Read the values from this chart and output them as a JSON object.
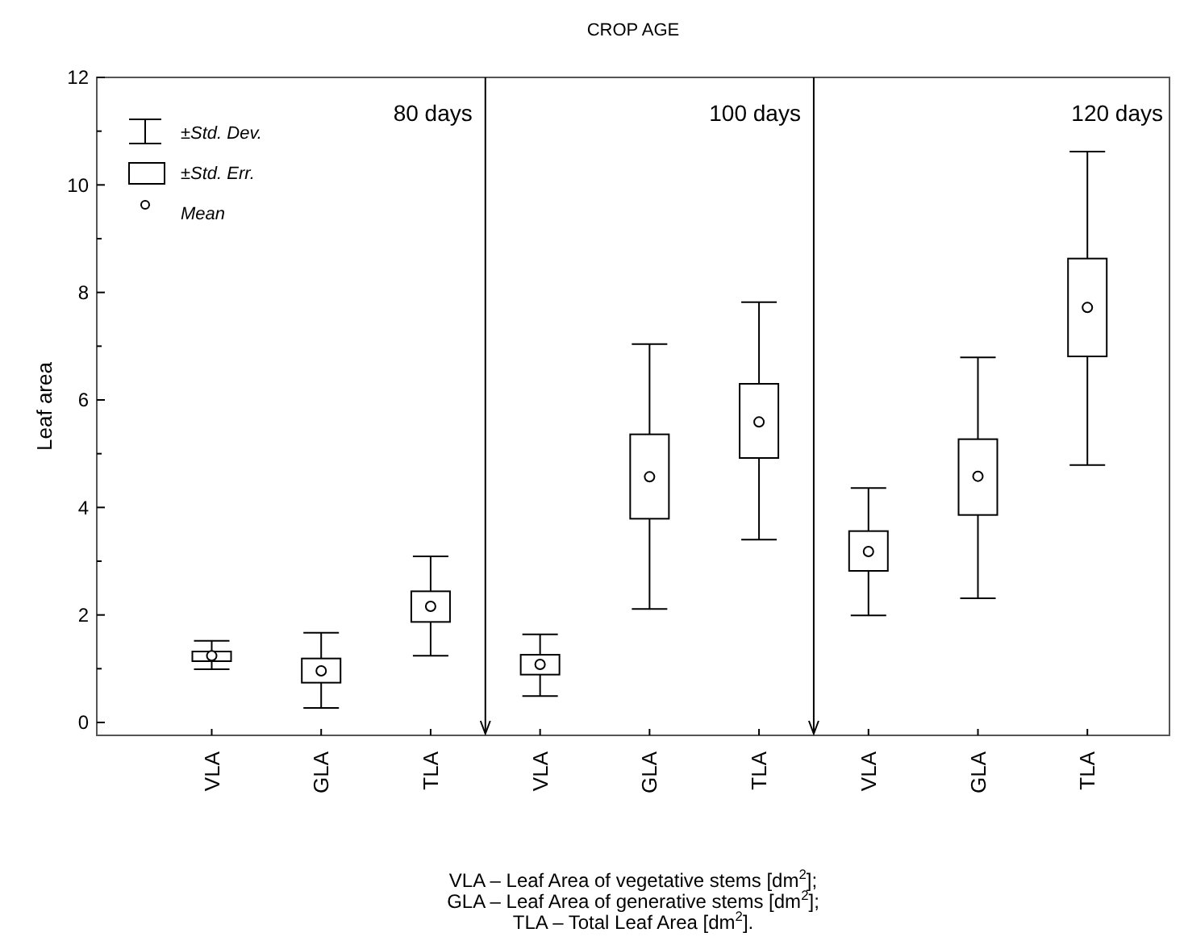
{
  "chart_data": {
    "type": "box",
    "title": "CROP AGE",
    "ylabel": "Leaf area",
    "categories": [
      "VLA",
      "GLA",
      "TLA",
      "VLA",
      "GLA",
      "TLA",
      "VLA",
      "GLA",
      "TLA"
    ],
    "boxes": [
      {
        "low": 0.99,
        "q1": 1.14,
        "median": 1.24,
        "q3": 1.32,
        "high": 1.52
      },
      {
        "low": 0.27,
        "q1": 0.74,
        "median": 0.96,
        "q3": 1.19,
        "high": 1.67
      },
      {
        "low": 1.24,
        "q1": 1.87,
        "median": 2.16,
        "q3": 2.44,
        "high": 3.09
      },
      {
        "low": 0.49,
        "q1": 0.89,
        "median": 1.08,
        "q3": 1.26,
        "high": 1.64
      },
      {
        "low": 2.11,
        "q1": 3.79,
        "median": 4.57,
        "q3": 5.36,
        "high": 7.04
      },
      {
        "low": 3.4,
        "q1": 4.92,
        "median": 5.59,
        "q3": 6.3,
        "high": 7.82
      },
      {
        "low": 1.99,
        "q1": 2.82,
        "median": 3.18,
        "q3": 3.56,
        "high": 4.36
      },
      {
        "low": 2.31,
        "q1": 3.86,
        "median": 4.58,
        "q3": 5.27,
        "high": 6.79
      },
      {
        "low": 4.79,
        "q1": 6.81,
        "median": 7.72,
        "q3": 8.63,
        "high": 10.62
      }
    ],
    "ylim": [
      -0.24,
      12
    ],
    "yticks": [
      0,
      {
        "value": 1,
        "label": null
      },
      2,
      {
        "value": 3,
        "label": null
      },
      4,
      {
        "value": 5,
        "label": null
      },
      6,
      {
        "value": 7,
        "label": null
      },
      8,
      {
        "value": 9,
        "label": null
      },
      10,
      {
        "value": 11,
        "label": null
      },
      12
    ],
    "grid": false,
    "annotations": [
      "80 days",
      "100 days",
      "120 days",
      "±Std. Dev.",
      "±Std. Err.",
      "Mean",
      "VLA – Leaf Area of vegetative stems [dm$^{2}$];",
      "GLA – Leaf Area of generative stems [dm$^{2}$];",
      "TLA – Total Leaf Area [dm$^{2}$]."
    ]
  }
}
